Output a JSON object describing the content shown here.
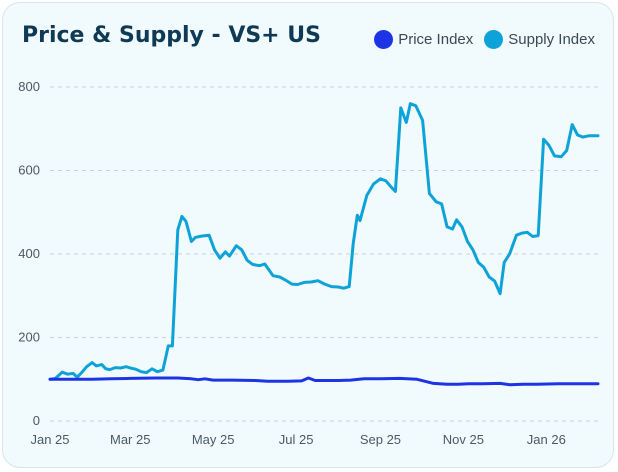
{
  "chart_data": {
    "type": "line",
    "title": "Price & Supply - VS+ US",
    "xlabel": "",
    "ylabel": "",
    "ylim": [
      0,
      800
    ],
    "yticks": [
      0,
      200,
      400,
      600,
      800
    ],
    "xlim": [
      "2025-01-01",
      "2026-02-08"
    ],
    "xticks": [
      {
        "label": "Jan 25",
        "date": "2025-01-01"
      },
      {
        "label": "Mar 25",
        "date": "2025-03-01"
      },
      {
        "label": "May 25",
        "date": "2025-05-01"
      },
      {
        "label": "Jul 25",
        "date": "2025-07-01"
      },
      {
        "label": "Sep 25",
        "date": "2025-09-01"
      },
      {
        "label": "Nov 25",
        "date": "2025-11-01"
      },
      {
        "label": "Jan 26",
        "date": "2026-01-01"
      }
    ],
    "grid": true,
    "legend_position": "top-right",
    "series": [
      {
        "name": "Price Index",
        "color": "#1d34e6",
        "points": [
          [
            "2025-01-01",
            100
          ],
          [
            "2025-01-15",
            100
          ],
          [
            "2025-02-01",
            100
          ],
          [
            "2025-02-15",
            101
          ],
          [
            "2025-03-01",
            102
          ],
          [
            "2025-03-20",
            103
          ],
          [
            "2025-04-05",
            103
          ],
          [
            "2025-04-15",
            101
          ],
          [
            "2025-04-20",
            99
          ],
          [
            "2025-04-25",
            101
          ],
          [
            "2025-05-01",
            98
          ],
          [
            "2025-05-15",
            98
          ],
          [
            "2025-06-01",
            97
          ],
          [
            "2025-06-10",
            95
          ],
          [
            "2025-06-25",
            95
          ],
          [
            "2025-07-05",
            96
          ],
          [
            "2025-07-10",
            103
          ],
          [
            "2025-07-15",
            97
          ],
          [
            "2025-08-01",
            97
          ],
          [
            "2025-08-10",
            98
          ],
          [
            "2025-08-20",
            101
          ],
          [
            "2025-09-01",
            101
          ],
          [
            "2025-09-15",
            102
          ],
          [
            "2025-09-28",
            100
          ],
          [
            "2025-10-10",
            90
          ],
          [
            "2025-10-20",
            88
          ],
          [
            "2025-10-28",
            88
          ],
          [
            "2025-11-05",
            89
          ],
          [
            "2025-11-15",
            89
          ],
          [
            "2025-11-28",
            90
          ],
          [
            "2025-12-05",
            87
          ],
          [
            "2025-12-15",
            88
          ],
          [
            "2025-12-25",
            88
          ],
          [
            "2026-01-10",
            89
          ],
          [
            "2026-02-08",
            89
          ]
        ]
      },
      {
        "name": "Supply Index",
        "color": "#0ea3d8",
        "points": [
          [
            "2025-01-01",
            100
          ],
          [
            "2025-01-05",
            102
          ],
          [
            "2025-01-10",
            117
          ],
          [
            "2025-01-14",
            112
          ],
          [
            "2025-01-18",
            114
          ],
          [
            "2025-01-21",
            105
          ],
          [
            "2025-01-24",
            115
          ],
          [
            "2025-01-28",
            130
          ],
          [
            "2025-02-01",
            140
          ],
          [
            "2025-02-04",
            132
          ],
          [
            "2025-02-08",
            135
          ],
          [
            "2025-02-11",
            125
          ],
          [
            "2025-02-14",
            123
          ],
          [
            "2025-02-18",
            128
          ],
          [
            "2025-02-22",
            127
          ],
          [
            "2025-02-26",
            130
          ],
          [
            "2025-03-01",
            127
          ],
          [
            "2025-03-05",
            124
          ],
          [
            "2025-03-09",
            118
          ],
          [
            "2025-03-13",
            116
          ],
          [
            "2025-03-17",
            125
          ],
          [
            "2025-03-21",
            118
          ],
          [
            "2025-03-25",
            122
          ],
          [
            "2025-03-29",
            180
          ],
          [
            "2025-04-01",
            180
          ],
          [
            "2025-04-05",
            458
          ],
          [
            "2025-04-08",
            490
          ],
          [
            "2025-04-11",
            478
          ],
          [
            "2025-04-15",
            430
          ],
          [
            "2025-04-18",
            440
          ],
          [
            "2025-04-23",
            443
          ],
          [
            "2025-04-28",
            445
          ],
          [
            "2025-05-02",
            410
          ],
          [
            "2025-05-06",
            390
          ],
          [
            "2025-05-10",
            405
          ],
          [
            "2025-05-13",
            395
          ],
          [
            "2025-05-18",
            420
          ],
          [
            "2025-05-22",
            410
          ],
          [
            "2025-05-26",
            385
          ],
          [
            "2025-05-30",
            375
          ],
          [
            "2025-06-04",
            372
          ],
          [
            "2025-06-08",
            376
          ],
          [
            "2025-06-14",
            348
          ],
          [
            "2025-06-19",
            345
          ],
          [
            "2025-06-23",
            338
          ],
          [
            "2025-06-28",
            328
          ],
          [
            "2025-07-02",
            327
          ],
          [
            "2025-07-07",
            332
          ],
          [
            "2025-07-12",
            333
          ],
          [
            "2025-07-17",
            336
          ],
          [
            "2025-07-22",
            328
          ],
          [
            "2025-07-27",
            322
          ],
          [
            "2025-08-01",
            321
          ],
          [
            "2025-08-05",
            318
          ],
          [
            "2025-08-09",
            322
          ],
          [
            "2025-08-12",
            425
          ],
          [
            "2025-08-15",
            493
          ],
          [
            "2025-08-17",
            480
          ],
          [
            "2025-08-22",
            540
          ],
          [
            "2025-08-27",
            568
          ],
          [
            "2025-09-01",
            580
          ],
          [
            "2025-09-05",
            575
          ],
          [
            "2025-09-09",
            560
          ],
          [
            "2025-09-12",
            550
          ],
          [
            "2025-09-16",
            750
          ],
          [
            "2025-09-20",
            715
          ],
          [
            "2025-09-23",
            760
          ],
          [
            "2025-09-27",
            755
          ],
          [
            "2025-10-02",
            720
          ],
          [
            "2025-10-07",
            545
          ],
          [
            "2025-10-12",
            525
          ],
          [
            "2025-10-16",
            520
          ],
          [
            "2025-10-20",
            465
          ],
          [
            "2025-10-24",
            460
          ],
          [
            "2025-10-27",
            482
          ],
          [
            "2025-10-31",
            465
          ],
          [
            "2025-11-04",
            430
          ],
          [
            "2025-11-08",
            410
          ],
          [
            "2025-11-12",
            380
          ],
          [
            "2025-11-16",
            368
          ],
          [
            "2025-11-20",
            345
          ],
          [
            "2025-11-24",
            335
          ],
          [
            "2025-11-28",
            305
          ],
          [
            "2025-12-01",
            380
          ],
          [
            "2025-12-05",
            400
          ],
          [
            "2025-12-10",
            445
          ],
          [
            "2025-12-14",
            450
          ],
          [
            "2025-12-18",
            452
          ],
          [
            "2025-12-22",
            442
          ],
          [
            "2025-12-26",
            444
          ],
          [
            "2025-12-30",
            675
          ],
          [
            "2026-01-03",
            660
          ],
          [
            "2026-01-07",
            635
          ],
          [
            "2026-01-12",
            633
          ],
          [
            "2026-01-16",
            648
          ],
          [
            "2026-01-20",
            710
          ],
          [
            "2026-01-24",
            685
          ],
          [
            "2026-01-28",
            680
          ],
          [
            "2026-02-01",
            683
          ],
          [
            "2026-02-08",
            683
          ]
        ]
      }
    ]
  }
}
